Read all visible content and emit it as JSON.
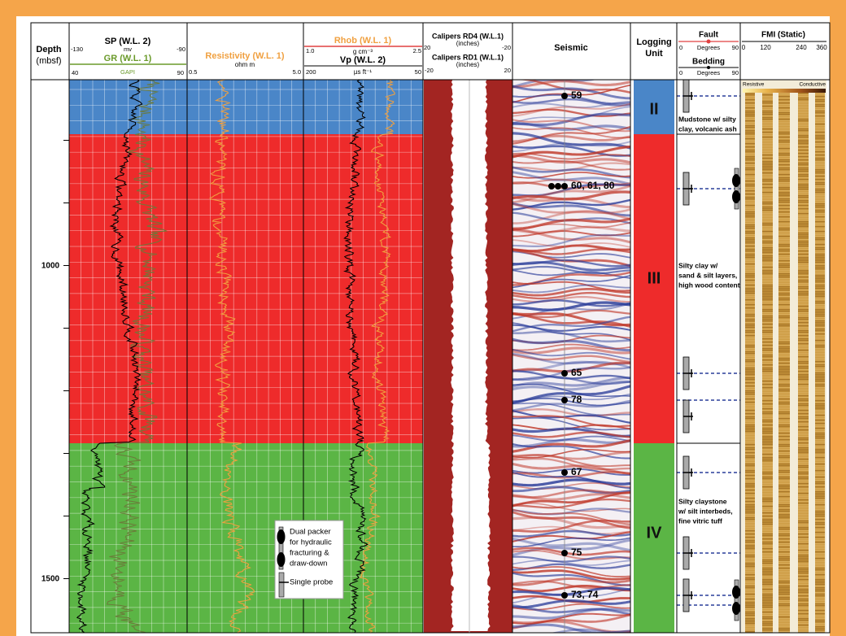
{
  "depth_axis": {
    "title": "Depth",
    "unit": "(mbsf)",
    "labels": [
      "1000",
      "1500"
    ]
  },
  "tracks": {
    "sp_gr": {
      "sp_title": "SP (W.L. 2)",
      "sp_min": "-130",
      "sp_unit": "mv",
      "sp_max": "-90",
      "gr_title": "GR (W.L. 1)",
      "gr_min": "40",
      "gr_unit": "GAPI",
      "gr_max": "90"
    },
    "resistivity": {
      "title": "Resistivity (W.L. 1)",
      "unit": "ohm m",
      "min": "0.5",
      "max": "5.0"
    },
    "rhob_vp": {
      "rhob_title": "Rhob (W.L. 1)",
      "rhob_min": "1.0",
      "rhob_unit": "g cm⁻³",
      "rhob_max": "2.5",
      "vp_title": "Vp (W.L. 2)",
      "vp_min": "200",
      "vp_unit": "µs ft⁻¹",
      "vp_max": "50"
    },
    "calipers": {
      "rd4_title": "Calipers RD4 (W.L.1)",
      "rd4_unit": "(inches)",
      "rd4_min": "20",
      "rd4_max": "-20",
      "rd1_title": "Calipers RD1 (W.L.1)",
      "rd1_unit": "(inches)",
      "rd1_min": "-20",
      "rd1_max": "20"
    },
    "seismic": {
      "title": "Seismic",
      "markers": [
        {
          "label": "59"
        },
        {
          "label": "60, 61, 80"
        },
        {
          "label": "65"
        },
        {
          "label": "78"
        },
        {
          "label": "67"
        },
        {
          "label": "75"
        },
        {
          "label": "73, 74"
        }
      ]
    },
    "logging_unit": {
      "title_lines": [
        "Logging",
        "Unit"
      ],
      "units": [
        {
          "label": "II",
          "description": [
            "Mudstone w/ silty",
            "clay, volcanic ash"
          ]
        },
        {
          "label": "III",
          "description": [
            "Silty clay w/",
            "sand & silt layers,",
            "high wood content"
          ]
        },
        {
          "label": "IV",
          "description": [
            "Silty claystone",
            "w/ silt interbeds,",
            "fine vitric tuff"
          ]
        }
      ]
    },
    "fault_bedding": {
      "fault": "Fault",
      "fault_min": "0",
      "fault_unit": "Degrees",
      "fault_max": "90",
      "bedding": "Bedding",
      "bedding_min": "0",
      "bedding_unit": "Degrees",
      "bedding_max": "90"
    },
    "fmi": {
      "title": "FMI (Static)",
      "ticks": [
        "0",
        "120",
        "240",
        "360"
      ],
      "resistive": "Resistive",
      "conductive": "Conductive"
    }
  },
  "legend": {
    "dual_lines": [
      "Dual packer",
      "for hydraulic",
      "fracturing &",
      "draw-down"
    ],
    "single": "Single probe"
  }
}
